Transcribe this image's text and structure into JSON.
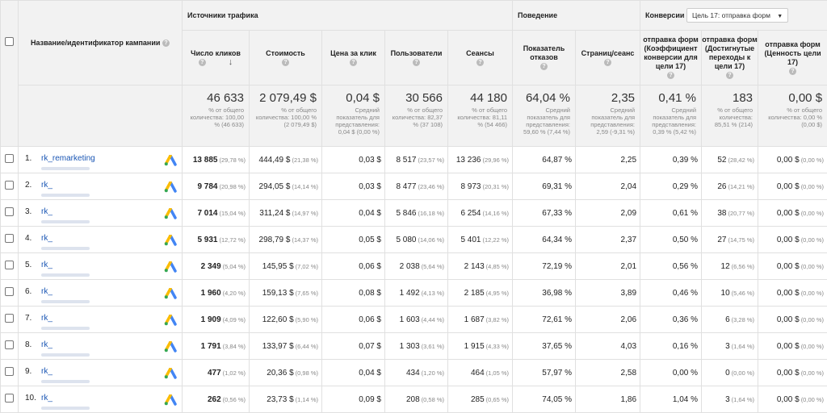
{
  "header": {
    "campaign_col": "Название/идентификатор кампании",
    "group_traffic": "Источники трафика",
    "group_behavior": "Поведение",
    "group_conversions": "Конверсии",
    "goal_select": "Цель 17: отправка форм",
    "columns": [
      "Число кликов",
      "Стоимость",
      "Цена за клик",
      "Пользователи",
      "Сеансы",
      "Показатель отказов",
      "Страниц/сеанс",
      "отправка форм (Коэффициент конверсии для цели 17)",
      "отправка форм (Достигнутые переходы к цели 17)",
      "отправка форм (Ценность цели 17)"
    ]
  },
  "totals": [
    {
      "value": "46 633",
      "sub": "% от общего количества: 100,00 % (46 633)"
    },
    {
      "value": "2 079,49 $",
      "sub": "% от общего количества: 100,00 % (2 079,49 $)"
    },
    {
      "value": "0,04 $",
      "sub": "Средний показатель для представления: 0,04 $ (0,00 %)"
    },
    {
      "value": "30 566",
      "sub": "% от общего количества: 82,37 % (37 108)"
    },
    {
      "value": "44 180",
      "sub": "% от общего количества: 81,11 % (54 466)"
    },
    {
      "value": "64,04 %",
      "sub": "Средний показатель для представления: 59,60 % (7,44 %)"
    },
    {
      "value": "2,35",
      "sub": "Средний показатель для представления: 2,59 (-9,31 %)"
    },
    {
      "value": "0,41 %",
      "sub": "Средний показатель для представления: 0,39 % (5,42 %)"
    },
    {
      "value": "183",
      "sub": "% от общего количества: 85,51 % (214)"
    },
    {
      "value": "0,00 $",
      "sub": "% от общего количества: 0,00 % (0,00 $)"
    }
  ],
  "rows": [
    {
      "num": "1.",
      "name": "rk_remarketing",
      "clicks": "13 885",
      "clicks_p": "(29,78 %)",
      "cost": "444,49 $",
      "cost_p": "(21,38 %)",
      "cpc": "0,03 $",
      "users": "8 517",
      "users_p": "(23,57 %)",
      "sessions": "13 236",
      "sessions_p": "(29,96 %)",
      "bounce": "64,87 %",
      "pages": "2,25",
      "conv": "0,39 %",
      "goals": "52",
      "goals_p": "(28,42 %)",
      "value": "0,00 $",
      "value_p": "(0,00 %)"
    },
    {
      "num": "2.",
      "name": "rk_",
      "clicks": "9 784",
      "clicks_p": "(20,98 %)",
      "cost": "294,05 $",
      "cost_p": "(14,14 %)",
      "cpc": "0,03 $",
      "users": "8 477",
      "users_p": "(23,46 %)",
      "sessions": "8 973",
      "sessions_p": "(20,31 %)",
      "bounce": "69,31 %",
      "pages": "2,04",
      "conv": "0,29 %",
      "goals": "26",
      "goals_p": "(14,21 %)",
      "value": "0,00 $",
      "value_p": "(0,00 %)"
    },
    {
      "num": "3.",
      "name": "rk_",
      "clicks": "7 014",
      "clicks_p": "(15,04 %)",
      "cost": "311,24 $",
      "cost_p": "(14,97 %)",
      "cpc": "0,04 $",
      "users": "5 846",
      "users_p": "(16,18 %)",
      "sessions": "6 254",
      "sessions_p": "(14,16 %)",
      "bounce": "67,33 %",
      "pages": "2,09",
      "conv": "0,61 %",
      "goals": "38",
      "goals_p": "(20,77 %)",
      "value": "0,00 $",
      "value_p": "(0,00 %)"
    },
    {
      "num": "4.",
      "name": "rk_",
      "clicks": "5 931",
      "clicks_p": "(12,72 %)",
      "cost": "298,79 $",
      "cost_p": "(14,37 %)",
      "cpc": "0,05 $",
      "users": "5 080",
      "users_p": "(14,06 %)",
      "sessions": "5 401",
      "sessions_p": "(12,22 %)",
      "bounce": "64,34 %",
      "pages": "2,37",
      "conv": "0,50 %",
      "goals": "27",
      "goals_p": "(14,75 %)",
      "value": "0,00 $",
      "value_p": "(0,00 %)"
    },
    {
      "num": "5.",
      "name": "rk_",
      "clicks": "2 349",
      "clicks_p": "(5,04 %)",
      "cost": "145,95 $",
      "cost_p": "(7,02 %)",
      "cpc": "0,06 $",
      "users": "2 038",
      "users_p": "(5,64 %)",
      "sessions": "2 143",
      "sessions_p": "(4,85 %)",
      "bounce": "72,19 %",
      "pages": "2,01",
      "conv": "0,56 %",
      "goals": "12",
      "goals_p": "(6,56 %)",
      "value": "0,00 $",
      "value_p": "(0,00 %)"
    },
    {
      "num": "6.",
      "name": "rk_",
      "clicks": "1 960",
      "clicks_p": "(4,20 %)",
      "cost": "159,13 $",
      "cost_p": "(7,65 %)",
      "cpc": "0,08 $",
      "users": "1 492",
      "users_p": "(4,13 %)",
      "sessions": "2 185",
      "sessions_p": "(4,95 %)",
      "bounce": "36,98 %",
      "pages": "3,89",
      "conv": "0,46 %",
      "goals": "10",
      "goals_p": "(5,46 %)",
      "value": "0,00 $",
      "value_p": "(0,00 %)"
    },
    {
      "num": "7.",
      "name": "rk_",
      "clicks": "1 909",
      "clicks_p": "(4,09 %)",
      "cost": "122,60 $",
      "cost_p": "(5,90 %)",
      "cpc": "0,06 $",
      "users": "1 603",
      "users_p": "(4,44 %)",
      "sessions": "1 687",
      "sessions_p": "(3,82 %)",
      "bounce": "72,61 %",
      "pages": "2,06",
      "conv": "0,36 %",
      "goals": "6",
      "goals_p": "(3,28 %)",
      "value": "0,00 $",
      "value_p": "(0,00 %)"
    },
    {
      "num": "8.",
      "name": "rk_",
      "clicks": "1 791",
      "clicks_p": "(3,84 %)",
      "cost": "133,97 $",
      "cost_p": "(6,44 %)",
      "cpc": "0,07 $",
      "users": "1 303",
      "users_p": "(3,61 %)",
      "sessions": "1 915",
      "sessions_p": "(4,33 %)",
      "bounce": "37,65 %",
      "pages": "4,03",
      "conv": "0,16 %",
      "goals": "3",
      "goals_p": "(1,64 %)",
      "value": "0,00 $",
      "value_p": "(0,00 %)"
    },
    {
      "num": "9.",
      "name": "rk_",
      "clicks": "477",
      "clicks_p": "(1,02 %)",
      "cost": "20,36 $",
      "cost_p": "(0,98 %)",
      "cpc": "0,04 $",
      "users": "434",
      "users_p": "(1,20 %)",
      "sessions": "464",
      "sessions_p": "(1,05 %)",
      "bounce": "57,97 %",
      "pages": "2,58",
      "conv": "0,00 %",
      "goals": "0",
      "goals_p": "(0,00 %)",
      "value": "0,00 $",
      "value_p": "(0,00 %)"
    },
    {
      "num": "10.",
      "name": "rk_",
      "clicks": "262",
      "clicks_p": "(0,56 %)",
      "cost": "23,73 $",
      "cost_p": "(1,14 %)",
      "cpc": "0,09 $",
      "users": "208",
      "users_p": "(0,58 %)",
      "sessions": "285",
      "sessions_p": "(0,65 %)",
      "bounce": "74,05 %",
      "pages": "1,86",
      "conv": "1,04 %",
      "goals": "3",
      "goals_p": "(1,64 %)",
      "value": "0,00 $",
      "value_p": "(0,00 %)"
    }
  ]
}
